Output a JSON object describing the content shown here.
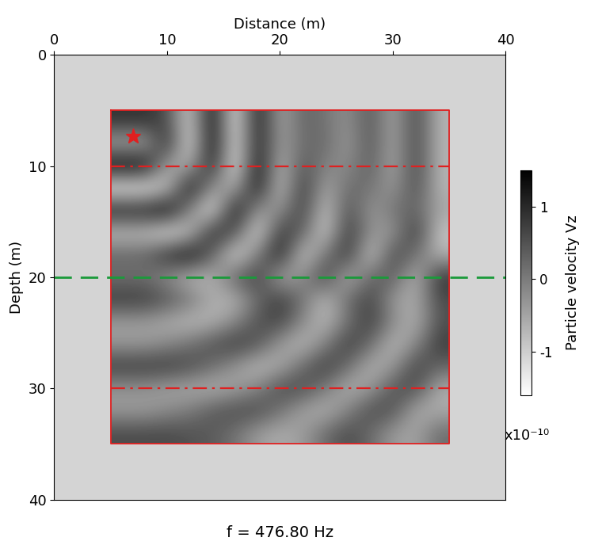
{
  "chart_data": {
    "type": "heatmap",
    "title": "f = 476.80 Hz",
    "x_label": "Distance (m)",
    "y_label": "Depth (m)",
    "xlim": [
      0,
      40
    ],
    "ylim": [
      40,
      0
    ],
    "xticks": [
      0,
      10,
      20,
      30,
      40
    ],
    "yticks": [
      0,
      10,
      20,
      30,
      40
    ],
    "x": [
      6,
      8,
      10,
      12,
      14,
      16,
      18,
      20,
      22,
      24,
      26,
      28,
      30,
      32,
      34
    ],
    "y": [
      6,
      8,
      10,
      12,
      14,
      16,
      18,
      20,
      22,
      24,
      26,
      28,
      30,
      32,
      34
    ],
    "cells": [
      [
        0.9,
        0.9,
        0.6,
        -1.2,
        1.5,
        -1.5,
        1.3,
        -0.6,
        0.3,
        0.1,
        -0.3,
        0.5,
        -0.6,
        0.7,
        -0.7
      ],
      [
        -0.6,
        -0.6,
        1.1,
        -1.4,
        1.5,
        -1.4,
        1.2,
        -0.5,
        0.2,
        0.2,
        -0.4,
        0.5,
        -0.6,
        0.7,
        -0.7
      ],
      [
        1.5,
        1.5,
        -0.6,
        -0.6,
        1.2,
        -1.5,
        1.4,
        -0.8,
        0.5,
        -0.1,
        -0.2,
        0.4,
        -0.6,
        0.7,
        -0.7
      ],
      [
        -1.5,
        -1.5,
        -0.9,
        1.4,
        -0.4,
        -0.6,
        1.3,
        -1.0,
        0.9,
        -0.6,
        0.2,
        0.1,
        -0.4,
        0.6,
        -0.7
      ],
      [
        1.2,
        1.2,
        1.5,
        -0.2,
        -1.4,
        1.4,
        -0.4,
        -0.3,
        0.8,
        -1.0,
        0.6,
        -0.4,
        0.1,
        0.3,
        -0.5
      ],
      [
        -0.9,
        -0.9,
        -1.4,
        -0.9,
        1.1,
        0.5,
        -1.3,
        0.9,
        0.3,
        -1.1,
        0.9,
        -0.3,
        -0.4,
        0.9,
        -0.9
      ],
      [
        0.3,
        0.3,
        1.0,
        1.4,
        0.3,
        -1.3,
        0.0,
        1.2,
        -1.1,
        0.1,
        0.9,
        -1.1,
        0.7,
        0.1,
        -0.7
      ],
      [
        0.1,
        0.1,
        -0.3,
        -0.8,
        -0.7,
        0.4,
        0.8,
        -0.7,
        -0.2,
        0.8,
        -0.8,
        0.3,
        0.4,
        -0.8,
        0.9
      ],
      [
        0.8,
        0.8,
        0.5,
        0.1,
        -0.6,
        -0.7,
        0.2,
        0.8,
        0.1,
        -0.8,
        0.2,
        0.7,
        -0.4,
        -0.6,
        0.6
      ],
      [
        -0.4,
        -0.4,
        -0.6,
        -0.8,
        -0.7,
        -0.2,
        0.5,
        0.7,
        -0.2,
        -0.8,
        0.1,
        0.8,
        -0.2,
        -0.7,
        0.5
      ],
      [
        -0.4,
        -0.4,
        -0.2,
        0.1,
        0.5,
        0.8,
        0.5,
        -0.4,
        -0.8,
        -0.1,
        0.8,
        0.2,
        -0.8,
        -0.2,
        0.8
      ],
      [
        0.8,
        0.8,
        0.8,
        0.6,
        0.2,
        -0.3,
        -0.8,
        -0.6,
        0.2,
        0.8,
        0.2,
        -0.7,
        -0.4,
        0.7,
        0.3
      ],
      [
        -0.3,
        -0.3,
        -0.5,
        -0.6,
        -0.7,
        -0.5,
        -0.1,
        0.6,
        0.6,
        0.0,
        -0.7,
        -0.4,
        0.5,
        0.6,
        -0.6
      ],
      [
        -0.4,
        -0.4,
        -0.2,
        0.0,
        0.4,
        0.6,
        0.6,
        0.1,
        -0.5,
        -0.7,
        -0.1,
        0.6,
        0.5,
        -0.6,
        -0.6
      ],
      [
        0.6,
        0.6,
        0.6,
        0.5,
        0.4,
        0.1,
        -0.4,
        -0.6,
        -0.4,
        0.2,
        0.6,
        0.2,
        -0.4,
        -0.5,
        0.2
      ]
    ],
    "colorbar": {
      "label": "Particle velocity Vz",
      "range": [
        -1.6,
        1.5
      ],
      "ticks": [
        -1,
        0,
        1
      ],
      "multiplier": "x10⁻¹⁰"
    },
    "shapes": [
      {
        "type": "rectangle",
        "x": [
          5,
          35
        ],
        "y": [
          5,
          35
        ],
        "color": "#e02020",
        "line_style": "solid"
      },
      {
        "type": "hline",
        "y": 10,
        "x": [
          5,
          35
        ],
        "color": "#e02020",
        "line_style": "dashdot"
      },
      {
        "type": "hline",
        "y": 30,
        "x": [
          5,
          35
        ],
        "color": "#e02020",
        "line_style": "dashdot"
      },
      {
        "type": "hline",
        "y": 20,
        "x": [
          0,
          40
        ],
        "color": "#1a9a3a",
        "line_style": "dashed"
      },
      {
        "type": "point",
        "x": 7,
        "y": 7.3,
        "color": "#e02020",
        "marker": "star"
      }
    ]
  }
}
